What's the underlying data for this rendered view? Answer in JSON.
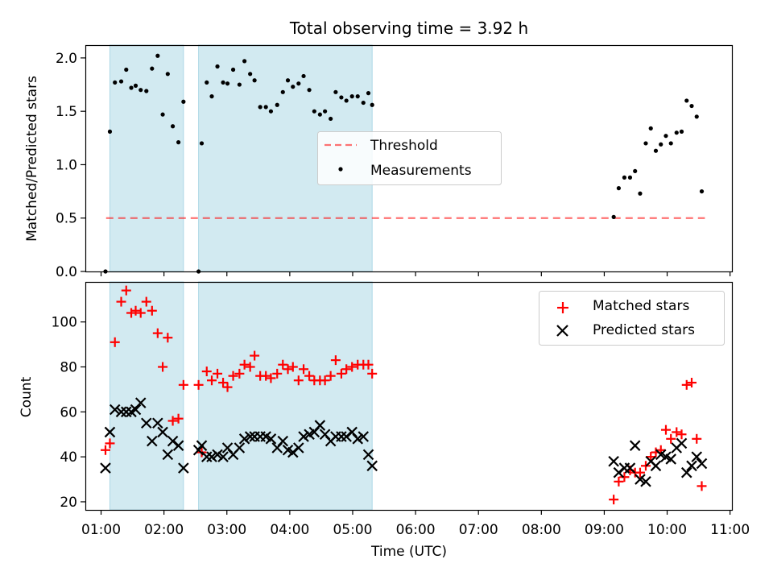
{
  "title": "Total observing time = 3.92 h",
  "colors": {
    "shade": "#add8e6",
    "threshold": "#ff0000",
    "measurement": "#000000",
    "matched": "#ff0000",
    "predicted": "#000000"
  },
  "chart_data": [
    {
      "type": "scatter",
      "ylabel": "Matched/Predicted stars",
      "ylim": [
        0,
        2.12
      ],
      "xlim": [
        0.75,
        11.03
      ],
      "yticks": [
        {
          "v": 0.0,
          "label": "0.0"
        },
        {
          "v": 0.5,
          "label": "0.5"
        },
        {
          "v": 1.0,
          "label": "1.0"
        },
        {
          "v": 1.5,
          "label": "1.5"
        },
        {
          "v": 2.0,
          "label": "2.0"
        }
      ],
      "shaded_intervals": [
        [
          1.14,
          2.31
        ],
        [
          2.55,
          5.31
        ]
      ],
      "threshold": {
        "name": "Threshold",
        "value": 0.5,
        "x_range": [
          1.08,
          10.6
        ],
        "style": "dashed"
      },
      "legend": {
        "placement": "center",
        "entries": [
          "Threshold",
          "Measurements"
        ]
      },
      "series": [
        {
          "name": "Measurements",
          "marker": "dot",
          "x": [
            1.07,
            1.14,
            1.22,
            1.32,
            1.4,
            1.48,
            1.55,
            1.63,
            1.72,
            1.81,
            1.9,
            1.98,
            2.06,
            2.14,
            2.23,
            2.31,
            2.55,
            2.6,
            2.68,
            2.76,
            2.85,
            2.94,
            3.01,
            3.1,
            3.2,
            3.28,
            3.37,
            3.44,
            3.53,
            3.62,
            3.7,
            3.8,
            3.89,
            3.97,
            4.05,
            4.14,
            4.22,
            4.31,
            4.39,
            4.48,
            4.56,
            4.65,
            4.73,
            4.82,
            4.9,
            4.99,
            5.08,
            5.17,
            5.25,
            5.31,
            9.15,
            9.23,
            9.32,
            9.41,
            9.49,
            9.57,
            9.66,
            9.74,
            9.82,
            9.9,
            9.98,
            10.06,
            10.15,
            10.23,
            10.31,
            10.39,
            10.47,
            10.55
          ],
          "y": [
            0.0,
            1.31,
            1.77,
            1.78,
            1.89,
            1.72,
            1.74,
            1.7,
            1.69,
            1.9,
            2.02,
            1.47,
            1.85,
            1.36,
            1.21,
            1.59,
            0.0,
            1.2,
            1.77,
            1.64,
            1.92,
            1.77,
            1.76,
            1.89,
            1.75,
            1.97,
            1.85,
            1.79,
            1.54,
            1.54,
            1.5,
            1.56,
            1.68,
            1.79,
            1.73,
            1.76,
            1.83,
            1.7,
            1.5,
            1.47,
            1.5,
            1.43,
            1.68,
            1.63,
            1.6,
            1.64,
            1.64,
            1.58,
            1.67,
            1.56,
            0.51,
            0.78,
            0.88,
            0.88,
            0.94,
            0.73,
            1.2,
            1.34,
            1.13,
            1.19,
            1.27,
            1.2,
            1.3,
            1.31,
            1.6,
            1.55,
            1.45,
            0.75
          ]
        }
      ]
    },
    {
      "type": "scatter",
      "xlabel": "Time (UTC)",
      "ylabel": "Count",
      "ylim": [
        16.4,
        117.8
      ],
      "xlim": [
        0.75,
        11.03
      ],
      "xticks": [
        {
          "v": 1,
          "label": "01:00"
        },
        {
          "v": 2,
          "label": "02:00"
        },
        {
          "v": 3,
          "label": "03:00"
        },
        {
          "v": 4,
          "label": "04:00"
        },
        {
          "v": 5,
          "label": "05:00"
        },
        {
          "v": 6,
          "label": "06:00"
        },
        {
          "v": 7,
          "label": "07:00"
        },
        {
          "v": 8,
          "label": "08:00"
        },
        {
          "v": 9,
          "label": "09:00"
        },
        {
          "v": 10,
          "label": "10:00"
        },
        {
          "v": 11,
          "label": "11:00"
        }
      ],
      "yticks": [
        {
          "v": 20,
          "label": "20"
        },
        {
          "v": 40,
          "label": "40"
        },
        {
          "v": 60,
          "label": "60"
        },
        {
          "v": 80,
          "label": "80"
        },
        {
          "v": 100,
          "label": "100"
        }
      ],
      "shaded_intervals": [
        [
          1.14,
          2.31
        ],
        [
          2.55,
          5.31
        ]
      ],
      "legend": {
        "placement": "top-right",
        "entries": [
          "Matched stars",
          "Predicted stars"
        ]
      },
      "series": [
        {
          "name": "Matched stars",
          "marker": "plus",
          "x": [
            1.07,
            1.14,
            1.22,
            1.32,
            1.4,
            1.48,
            1.55,
            1.63,
            1.72,
            1.81,
            1.9,
            1.98,
            2.06,
            2.14,
            2.23,
            2.31,
            2.55,
            2.6,
            2.68,
            2.76,
            2.85,
            2.94,
            3.01,
            3.1,
            3.2,
            3.28,
            3.37,
            3.44,
            3.53,
            3.62,
            3.7,
            3.8,
            3.89,
            3.97,
            4.05,
            4.14,
            4.22,
            4.31,
            4.39,
            4.48,
            4.56,
            4.65,
            4.73,
            4.82,
            4.9,
            4.99,
            5.08,
            5.17,
            5.25,
            5.31,
            9.15,
            9.23,
            9.32,
            9.41,
            9.49,
            9.57,
            9.66,
            9.74,
            9.82,
            9.9,
            9.98,
            10.06,
            10.15,
            10.23,
            10.31,
            10.39,
            10.47,
            10.55
          ],
          "y": [
            43,
            46,
            91,
            109,
            114,
            104,
            105,
            104,
            109,
            105,
            95,
            80,
            93,
            56,
            57,
            72,
            72,
            42,
            78,
            74,
            77,
            73,
            71,
            76,
            77,
            81,
            80,
            85,
            76,
            76,
            75,
            77,
            81,
            79,
            80,
            74,
            79,
            76,
            74,
            74,
            74,
            76,
            83,
            77,
            79,
            80,
            81,
            81,
            81,
            77,
            21,
            29,
            31,
            34,
            33,
            33,
            36,
            40,
            42,
            43,
            52,
            48,
            51,
            50,
            72,
            73,
            48,
            27
          ]
        },
        {
          "name": "Predicted stars",
          "marker": "x",
          "x": [
            1.07,
            1.14,
            1.22,
            1.32,
            1.4,
            1.48,
            1.55,
            1.63,
            1.72,
            1.81,
            1.9,
            1.98,
            2.06,
            2.14,
            2.23,
            2.31,
            2.55,
            2.6,
            2.68,
            2.76,
            2.85,
            2.94,
            3.01,
            3.1,
            3.2,
            3.28,
            3.37,
            3.44,
            3.53,
            3.62,
            3.7,
            3.8,
            3.89,
            3.97,
            4.05,
            4.14,
            4.22,
            4.31,
            4.39,
            4.48,
            4.56,
            4.65,
            4.73,
            4.82,
            4.9,
            4.99,
            5.08,
            5.17,
            5.25,
            5.31,
            9.15,
            9.23,
            9.32,
            9.41,
            9.49,
            9.57,
            9.66,
            9.74,
            9.82,
            9.9,
            9.98,
            10.06,
            10.15,
            10.23,
            10.31,
            10.39,
            10.47,
            10.55
          ],
          "y": [
            35,
            51,
            61,
            60,
            60,
            60,
            61,
            64,
            55,
            47,
            55,
            51,
            41,
            47,
            45,
            35,
            43,
            45,
            40,
            40,
            41,
            40,
            44,
            41,
            44,
            48,
            49,
            49,
            49,
            49,
            48,
            44,
            47,
            43,
            42,
            44,
            49,
            50,
            51,
            54,
            50,
            47,
            49,
            49,
            49,
            51,
            48,
            49,
            41,
            36,
            38,
            33,
            35,
            35,
            45,
            30,
            29,
            38,
            36,
            41,
            40,
            39,
            44,
            46,
            33,
            36,
            40,
            37
          ]
        }
      ]
    }
  ]
}
